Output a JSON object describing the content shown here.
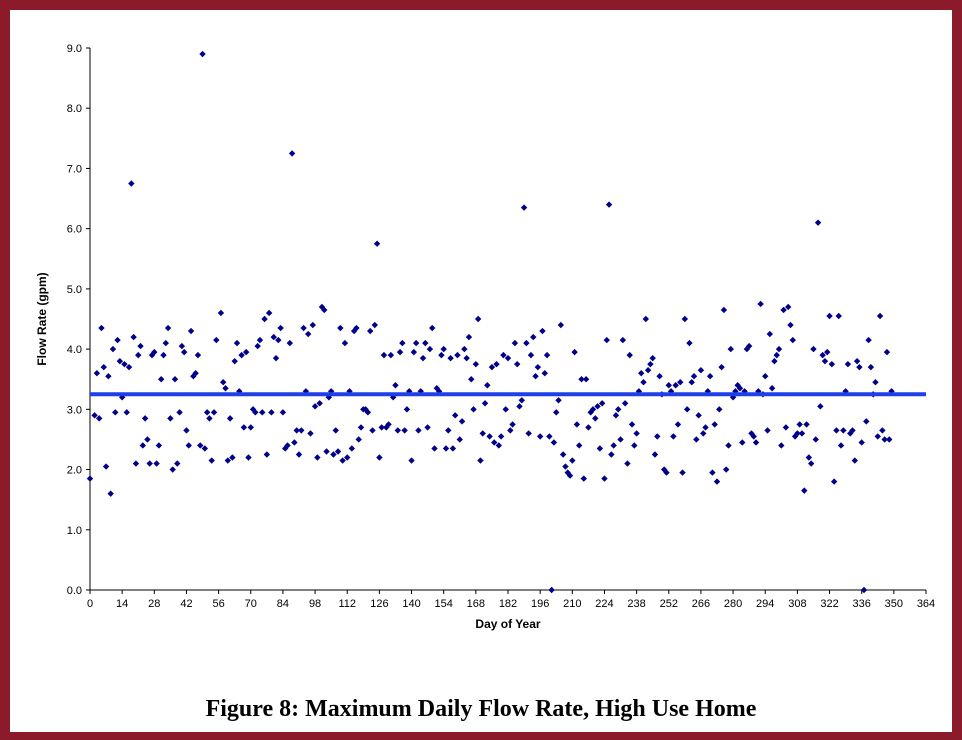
{
  "caption": "Figure 8: Maximum Daily Flow Rate, High Use Home",
  "chart_data": {
    "type": "scatter",
    "title": "",
    "xlabel": "Day of Year",
    "ylabel": "Flow Rate (gpm)",
    "xlim": [
      0,
      364
    ],
    "ylim": [
      0,
      9
    ],
    "x_ticks": [
      "0",
      "14",
      "28",
      "42",
      "56",
      "70",
      "84",
      "98",
      "112",
      "126",
      "140",
      "154",
      "168",
      "182",
      "196",
      "210",
      "224",
      "238",
      "252",
      "266",
      "280",
      "294",
      "308",
      "322",
      "336",
      "350",
      "364"
    ],
    "y_ticks": [
      "0.0",
      "1.0",
      "2.0",
      "3.0",
      "4.0",
      "5.0",
      "6.0",
      "7.0",
      "8.0",
      "9.0"
    ],
    "mean_line": {
      "value": 3.25,
      "color": "#1f3fe8"
    },
    "marker_color": "#00008b",
    "points": [
      [
        0,
        1.85
      ],
      [
        2,
        2.9
      ],
      [
        3,
        3.6
      ],
      [
        4,
        2.85
      ],
      [
        5,
        4.35
      ],
      [
        6,
        3.7
      ],
      [
        7,
        2.05
      ],
      [
        8,
        3.55
      ],
      [
        9,
        1.6
      ],
      [
        10,
        4.0
      ],
      [
        11,
        2.95
      ],
      [
        12,
        4.15
      ],
      [
        13,
        3.8
      ],
      [
        14,
        3.2
      ],
      [
        15,
        3.75
      ],
      [
        16,
        2.95
      ],
      [
        17,
        3.7
      ],
      [
        18,
        6.75
      ],
      [
        19,
        4.2
      ],
      [
        20,
        2.1
      ],
      [
        21,
        3.9
      ],
      [
        22,
        4.05
      ],
      [
        23,
        2.4
      ],
      [
        24,
        2.85
      ],
      [
        25,
        2.5
      ],
      [
        26,
        2.1
      ],
      [
        27,
        3.9
      ],
      [
        28,
        3.95
      ],
      [
        29,
        2.1
      ],
      [
        30,
        2.4
      ],
      [
        31,
        3.5
      ],
      [
        32,
        3.9
      ],
      [
        33,
        4.1
      ],
      [
        34,
        4.35
      ],
      [
        35,
        2.85
      ],
      [
        36,
        2.0
      ],
      [
        37,
        3.5
      ],
      [
        38,
        2.1
      ],
      [
        39,
        2.95
      ],
      [
        40,
        4.05
      ],
      [
        41,
        3.95
      ],
      [
        42,
        2.65
      ],
      [
        43,
        2.4
      ],
      [
        44,
        4.3
      ],
      [
        45,
        3.55
      ],
      [
        46,
        3.6
      ],
      [
        47,
        3.9
      ],
      [
        48,
        2.4
      ],
      [
        49,
        8.9
      ],
      [
        50,
        2.35
      ],
      [
        51,
        2.95
      ],
      [
        52,
        2.85
      ],
      [
        53,
        2.15
      ],
      [
        54,
        2.95
      ],
      [
        55,
        4.15
      ],
      [
        57,
        4.6
      ],
      [
        58,
        3.45
      ],
      [
        59,
        3.35
      ],
      [
        60,
        2.15
      ],
      [
        61,
        2.85
      ],
      [
        62,
        2.2
      ],
      [
        63,
        3.8
      ],
      [
        64,
        4.1
      ],
      [
        65,
        3.3
      ],
      [
        66,
        3.9
      ],
      [
        67,
        2.7
      ],
      [
        68,
        3.95
      ],
      [
        69,
        2.2
      ],
      [
        70,
        2.7
      ],
      [
        71,
        3.0
      ],
      [
        72,
        2.95
      ],
      [
        73,
        4.05
      ],
      [
        74,
        4.15
      ],
      [
        75,
        2.95
      ],
      [
        76,
        4.5
      ],
      [
        77,
        2.25
      ],
      [
        78,
        4.6
      ],
      [
        79,
        2.95
      ],
      [
        80,
        4.2
      ],
      [
        81,
        3.85
      ],
      [
        82,
        4.15
      ],
      [
        83,
        4.35
      ],
      [
        84,
        2.95
      ],
      [
        85,
        2.35
      ],
      [
        86,
        2.4
      ],
      [
        87,
        4.1
      ],
      [
        88,
        7.25
      ],
      [
        89,
        2.45
      ],
      [
        90,
        2.65
      ],
      [
        91,
        2.25
      ],
      [
        92,
        2.65
      ],
      [
        93,
        4.35
      ],
      [
        94,
        3.3
      ],
      [
        95,
        4.25
      ],
      [
        96,
        2.6
      ],
      [
        97,
        4.4
      ],
      [
        98,
        3.05
      ],
      [
        99,
        2.2
      ],
      [
        100,
        3.1
      ],
      [
        101,
        4.7
      ],
      [
        102,
        4.65
      ],
      [
        103,
        2.3
      ],
      [
        104,
        3.2
      ],
      [
        105,
        3.3
      ],
      [
        106,
        2.25
      ],
      [
        107,
        2.65
      ],
      [
        108,
        2.3
      ],
      [
        109,
        4.35
      ],
      [
        110,
        2.15
      ],
      [
        111,
        4.1
      ],
      [
        112,
        2.2
      ],
      [
        113,
        3.3
      ],
      [
        114,
        2.35
      ],
      [
        115,
        4.3
      ],
      [
        116,
        4.35
      ],
      [
        117,
        2.5
      ],
      [
        118,
        2.7
      ],
      [
        119,
        3.0
      ],
      [
        120,
        3.0
      ],
      [
        121,
        2.95
      ],
      [
        122,
        4.3
      ],
      [
        123,
        2.65
      ],
      [
        124,
        4.4
      ],
      [
        125,
        5.75
      ],
      [
        126,
        2.2
      ],
      [
        127,
        2.7
      ],
      [
        128,
        3.9
      ],
      [
        129,
        2.7
      ],
      [
        130,
        2.75
      ],
      [
        131,
        3.9
      ],
      [
        132,
        3.2
      ],
      [
        133,
        3.4
      ],
      [
        134,
        2.65
      ],
      [
        135,
        3.95
      ],
      [
        136,
        4.1
      ],
      [
        137,
        2.65
      ],
      [
        138,
        3.0
      ],
      [
        139,
        3.3
      ],
      [
        140,
        2.15
      ],
      [
        141,
        3.95
      ],
      [
        142,
        4.1
      ],
      [
        143,
        2.65
      ],
      [
        144,
        3.3
      ],
      [
        145,
        3.85
      ],
      [
        146,
        4.1
      ],
      [
        147,
        2.7
      ],
      [
        148,
        4.0
      ],
      [
        149,
        4.35
      ],
      [
        150,
        2.35
      ],
      [
        151,
        3.35
      ],
      [
        152,
        3.3
      ],
      [
        153,
        3.9
      ],
      [
        154,
        4.0
      ],
      [
        155,
        2.35
      ],
      [
        156,
        2.65
      ],
      [
        157,
        3.85
      ],
      [
        158,
        2.35
      ],
      [
        159,
        2.9
      ],
      [
        160,
        3.9
      ],
      [
        161,
        2.5
      ],
      [
        162,
        2.8
      ],
      [
        163,
        4.0
      ],
      [
        164,
        3.85
      ],
      [
        165,
        4.2
      ],
      [
        166,
        3.5
      ],
      [
        167,
        3.0
      ],
      [
        168,
        3.75
      ],
      [
        169,
        4.5
      ],
      [
        170,
        2.15
      ],
      [
        171,
        2.6
      ],
      [
        172,
        3.1
      ],
      [
        173,
        3.4
      ],
      [
        174,
        2.55
      ],
      [
        175,
        3.7
      ],
      [
        176,
        2.45
      ],
      [
        177,
        3.75
      ],
      [
        178,
        2.4
      ],
      [
        179,
        2.55
      ],
      [
        180,
        3.9
      ],
      [
        181,
        3.0
      ],
      [
        182,
        3.85
      ],
      [
        183,
        2.65
      ],
      [
        184,
        2.75
      ],
      [
        185,
        4.1
      ],
      [
        186,
        3.75
      ],
      [
        187,
        3.05
      ],
      [
        188,
        3.15
      ],
      [
        189,
        6.35
      ],
      [
        190,
        4.1
      ],
      [
        191,
        2.6
      ],
      [
        192,
        3.9
      ],
      [
        193,
        4.2
      ],
      [
        194,
        3.55
      ],
      [
        195,
        3.7
      ],
      [
        196,
        2.55
      ],
      [
        197,
        4.3
      ],
      [
        198,
        3.6
      ],
      [
        199,
        3.9
      ],
      [
        200,
        2.55
      ],
      [
        201,
        0.0
      ],
      [
        202,
        2.45
      ],
      [
        203,
        2.95
      ],
      [
        204,
        3.15
      ],
      [
        205,
        4.4
      ],
      [
        206,
        2.25
      ],
      [
        207,
        2.05
      ],
      [
        208,
        1.95
      ],
      [
        209,
        1.9
      ],
      [
        210,
        2.15
      ],
      [
        211,
        3.95
      ],
      [
        212,
        2.75
      ],
      [
        213,
        2.4
      ],
      [
        214,
        3.5
      ],
      [
        215,
        1.85
      ],
      [
        216,
        3.5
      ],
      [
        217,
        2.7
      ],
      [
        218,
        2.95
      ],
      [
        219,
        3.0
      ],
      [
        220,
        2.85
      ],
      [
        221,
        3.05
      ],
      [
        222,
        2.35
      ],
      [
        223,
        3.1
      ],
      [
        224,
        1.85
      ],
      [
        225,
        4.15
      ],
      [
        226,
        6.4
      ],
      [
        227,
        2.25
      ],
      [
        228,
        2.4
      ],
      [
        229,
        2.9
      ],
      [
        230,
        3.0
      ],
      [
        231,
        2.5
      ],
      [
        232,
        4.15
      ],
      [
        233,
        3.1
      ],
      [
        234,
        2.1
      ],
      [
        235,
        3.9
      ],
      [
        236,
        2.75
      ],
      [
        237,
        2.4
      ],
      [
        238,
        2.6
      ],
      [
        239,
        3.3
      ],
      [
        240,
        3.6
      ],
      [
        241,
        3.45
      ],
      [
        242,
        4.5
      ],
      [
        243,
        3.65
      ],
      [
        244,
        3.75
      ],
      [
        245,
        3.85
      ],
      [
        246,
        2.25
      ],
      [
        247,
        2.55
      ],
      [
        248,
        3.55
      ],
      [
        249,
        3.25
      ],
      [
        250,
        2.0
      ],
      [
        251,
        1.95
      ],
      [
        252,
        3.4
      ],
      [
        253,
        3.3
      ],
      [
        254,
        2.55
      ],
      [
        255,
        3.4
      ],
      [
        256,
        2.75
      ],
      [
        257,
        3.45
      ],
      [
        258,
        1.95
      ],
      [
        259,
        4.5
      ],
      [
        260,
        3.0
      ],
      [
        261,
        4.1
      ],
      [
        262,
        3.45
      ],
      [
        263,
        3.55
      ],
      [
        264,
        2.5
      ],
      [
        265,
        2.9
      ],
      [
        266,
        3.65
      ],
      [
        267,
        2.6
      ],
      [
        268,
        2.7
      ],
      [
        269,
        3.3
      ],
      [
        270,
        3.55
      ],
      [
        271,
        1.95
      ],
      [
        272,
        2.75
      ],
      [
        273,
        1.8
      ],
      [
        274,
        3.0
      ],
      [
        275,
        3.7
      ],
      [
        276,
        4.65
      ],
      [
        277,
        2.0
      ],
      [
        278,
        2.4
      ],
      [
        279,
        4.0
      ],
      [
        280,
        3.2
      ],
      [
        281,
        3.3
      ],
      [
        282,
        3.4
      ],
      [
        283,
        3.35
      ],
      [
        284,
        2.45
      ],
      [
        285,
        3.3
      ],
      [
        286,
        4.0
      ],
      [
        287,
        4.05
      ],
      [
        288,
        2.6
      ],
      [
        289,
        2.55
      ],
      [
        290,
        2.45
      ],
      [
        291,
        3.3
      ],
      [
        292,
        4.75
      ],
      [
        293,
        3.25
      ],
      [
        294,
        3.55
      ],
      [
        295,
        2.65
      ],
      [
        296,
        4.25
      ],
      [
        297,
        3.35
      ],
      [
        298,
        3.8
      ],
      [
        299,
        3.9
      ],
      [
        300,
        4.0
      ],
      [
        301,
        2.4
      ],
      [
        302,
        4.65
      ],
      [
        303,
        2.7
      ],
      [
        304,
        4.7
      ],
      [
        305,
        4.4
      ],
      [
        306,
        4.15
      ],
      [
        307,
        2.55
      ],
      [
        308,
        2.6
      ],
      [
        309,
        2.75
      ],
      [
        310,
        2.6
      ],
      [
        311,
        1.65
      ],
      [
        312,
        2.75
      ],
      [
        313,
        2.2
      ],
      [
        314,
        2.1
      ],
      [
        315,
        4.0
      ],
      [
        316,
        2.5
      ],
      [
        317,
        6.1
      ],
      [
        318,
        3.05
      ],
      [
        319,
        3.9
      ],
      [
        320,
        3.8
      ],
      [
        321,
        3.95
      ],
      [
        322,
        4.55
      ],
      [
        323,
        3.75
      ],
      [
        324,
        1.8
      ],
      [
        325,
        2.65
      ],
      [
        326,
        4.55
      ],
      [
        327,
        2.4
      ],
      [
        328,
        2.65
      ],
      [
        329,
        3.3
      ],
      [
        330,
        3.75
      ],
      [
        331,
        2.6
      ],
      [
        332,
        2.65
      ],
      [
        333,
        2.15
      ],
      [
        334,
        3.8
      ],
      [
        335,
        3.7
      ],
      [
        336,
        2.45
      ],
      [
        337,
        0.0
      ],
      [
        338,
        2.8
      ],
      [
        339,
        4.15
      ],
      [
        340,
        3.7
      ],
      [
        341,
        3.25
      ],
      [
        342,
        3.45
      ],
      [
        343,
        2.55
      ],
      [
        344,
        4.55
      ],
      [
        345,
        2.65
      ],
      [
        346,
        2.5
      ],
      [
        347,
        3.95
      ],
      [
        348,
        2.5
      ],
      [
        349,
        3.3
      ]
    ]
  }
}
